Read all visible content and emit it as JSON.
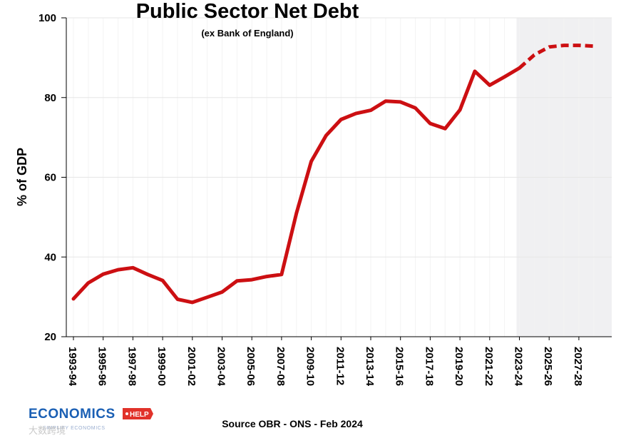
{
  "colors": {
    "line": "#cc0f12",
    "grid": "#e6e6e6",
    "forecast_shade": "#f0f0f2",
    "axis": "#000000",
    "logo_blue": "#1a5fb4",
    "logo_red": "#e1322a"
  },
  "chart_data": {
    "type": "line",
    "title": "Public Sector Net Debt",
    "subtitle": "(ex Bank of England)",
    "ylabel": "% of GDP",
    "xlabel": "",
    "ylim": [
      20,
      100
    ],
    "yticks": [
      20,
      40,
      60,
      80,
      100
    ],
    "grid": true,
    "x": [
      "1993-94",
      "1994-95",
      "1995-96",
      "1996-97",
      "1997-98",
      "1998-99",
      "1999-00",
      "2000-01",
      "2001-02",
      "2002-03",
      "2003-04",
      "2004-05",
      "2005-06",
      "2006-07",
      "2007-08",
      "2008-09",
      "2009-10",
      "2010-11",
      "2011-12",
      "2012-13",
      "2013-14",
      "2014-15",
      "2015-16",
      "2016-17",
      "2017-18",
      "2018-19",
      "2019-20",
      "2020-21",
      "2021-22",
      "2022-23",
      "2023-24",
      "2024-25",
      "2025-26",
      "2026-27",
      "2027-28",
      "2028-29"
    ],
    "xtick_labels": [
      "1993-94",
      "1995-96",
      "1997-98",
      "1999-00",
      "2001-02",
      "2003-04",
      "2005-06",
      "2007-08",
      "2009-10",
      "2011-12",
      "2013-14",
      "2015-16",
      "2017-18",
      "2019-20",
      "2021-22",
      "2023-24",
      "2025-26",
      "2027-28"
    ],
    "series": [
      {
        "values": [
          29.5,
          33.5,
          35.7,
          36.8,
          37.3,
          35.6,
          34.1,
          29.4,
          28.6,
          29.9,
          31.2,
          34.0,
          34.3,
          35.1,
          35.6,
          51.0,
          64.0,
          70.5,
          74.5,
          76.0,
          76.8,
          79.1,
          78.9,
          77.4,
          73.5,
          72.2,
          76.9,
          86.6,
          83.1,
          85.2,
          87.4,
          90.7,
          92.7,
          93.1,
          93.1,
          92.9
        ],
        "forecast_from": "2023-24"
      }
    ],
    "forecast_shade_from": "2023-24",
    "source": "Source OBR - ONS - Feb 2024"
  },
  "logo": {
    "main": "ECONOMICS",
    "tag": "HELP",
    "sub": "SIMPLIFY ECONOMICS"
  },
  "watermark": "大数跨境"
}
